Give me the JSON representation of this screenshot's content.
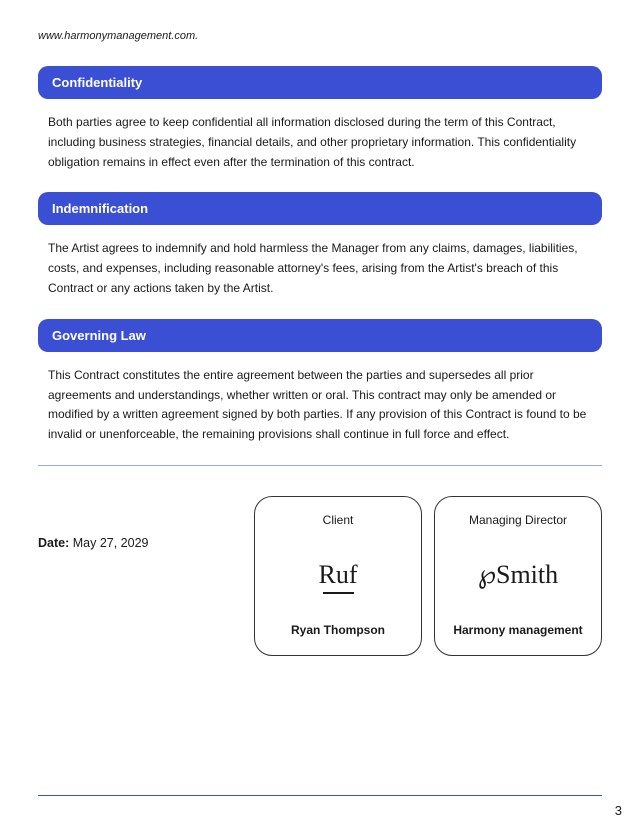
{
  "website": "www.harmonymanagement.com.",
  "sections": [
    {
      "title": "Confidentiality",
      "body": "Both parties agree to keep confidential all information disclosed during the term of this Contract, including business strategies, financial details, and other proprietary information. This confidentiality obligation remains in effect even after the termination of this contract."
    },
    {
      "title": "Indemnification",
      "body": "The Artist agrees to indemnify and hold harmless the Manager from any claims, damages, liabilities, costs, and expenses, including reasonable attorney's fees, arising from the Artist's breach of this Contract or any actions taken by the Artist."
    },
    {
      "title": "Governing Law",
      "body": "This Contract constitutes the entire agreement between the parties and supersedes all prior agreements and understandings, whether written or oral. This contract may only be amended or modified by a written agreement signed by both parties. If any provision of this Contract is found to be invalid or unenforceable, the remaining provisions shall continue in full force and effect."
    }
  ],
  "date_label": "Date:",
  "date_value": " May 27, 2029",
  "sig_client_role": "Client",
  "sig_client_name": "Ryan Thompson",
  "sig_manager_role": "Managing Director",
  "sig_manager_name": "Harmony management",
  "page_number": "3",
  "colors": {
    "header_bg": "#3b4fd4",
    "header_text": "#ffffff",
    "divider": "#9aa8e0",
    "footer_line": "#3b4fd4"
  }
}
